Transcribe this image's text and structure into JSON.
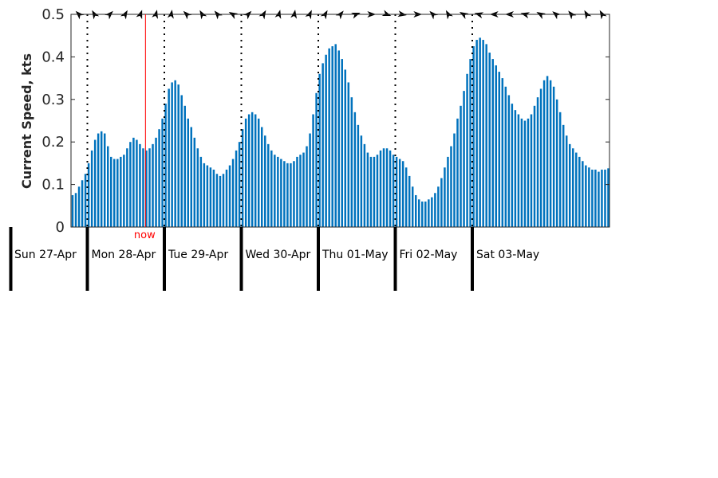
{
  "chart_data": {
    "type": "bar",
    "title": "",
    "xlabel": "",
    "ylabel": "Current Speed, kts",
    "ylim": [
      0,
      0.5
    ],
    "yticks": [
      0,
      0.1,
      0.2,
      0.3,
      0.4,
      0.5
    ],
    "ytick_labels": [
      "0",
      "0.1",
      "0.2",
      "0.3",
      "0.4",
      "0.5"
    ],
    "grid": false,
    "bar_color": "#0072bd",
    "now_color": "#ff0000",
    "now_label": "now",
    "now_position_days": 1.76,
    "day_labels": [
      "Sun 27-Apr",
      "Mon 28-Apr",
      "Tue 29-Apr",
      "Wed 30-Apr",
      "Thu 01-May",
      "Fri 02-May",
      "Sat 03-May"
    ],
    "days_shown": 7,
    "hours_per_bar": 1,
    "values": [
      0.075,
      0.08,
      0.095,
      0.11,
      0.125,
      0.15,
      0.18,
      0.205,
      0.22,
      0.225,
      0.22,
      0.19,
      0.165,
      0.16,
      0.16,
      0.165,
      0.17,
      0.185,
      0.2,
      0.21,
      0.205,
      0.195,
      0.185,
      0.18,
      0.185,
      0.195,
      0.21,
      0.23,
      0.255,
      0.29,
      0.325,
      0.34,
      0.345,
      0.335,
      0.31,
      0.285,
      0.255,
      0.235,
      0.21,
      0.185,
      0.165,
      0.15,
      0.145,
      0.14,
      0.135,
      0.125,
      0.12,
      0.125,
      0.135,
      0.145,
      0.16,
      0.18,
      0.2,
      0.23,
      0.255,
      0.265,
      0.27,
      0.265,
      0.255,
      0.235,
      0.215,
      0.195,
      0.18,
      0.17,
      0.165,
      0.16,
      0.155,
      0.15,
      0.15,
      0.155,
      0.165,
      0.17,
      0.175,
      0.19,
      0.22,
      0.265,
      0.315,
      0.36,
      0.385,
      0.405,
      0.42,
      0.425,
      0.43,
      0.415,
      0.395,
      0.37,
      0.34,
      0.305,
      0.27,
      0.24,
      0.215,
      0.195,
      0.175,
      0.165,
      0.165,
      0.17,
      0.18,
      0.185,
      0.185,
      0.18,
      0.17,
      0.165,
      0.16,
      0.155,
      0.14,
      0.12,
      0.095,
      0.075,
      0.065,
      0.06,
      0.06,
      0.065,
      0.07,
      0.08,
      0.095,
      0.115,
      0.14,
      0.165,
      0.19,
      0.22,
      0.255,
      0.285,
      0.32,
      0.36,
      0.395,
      0.425,
      0.44,
      0.445,
      0.44,
      0.43,
      0.41,
      0.395,
      0.38,
      0.365,
      0.35,
      0.33,
      0.31,
      0.29,
      0.275,
      0.265,
      0.255,
      0.25,
      0.255,
      0.265,
      0.285,
      0.305,
      0.325,
      0.345,
      0.355,
      0.345,
      0.33,
      0.3,
      0.27,
      0.24,
      0.215,
      0.195,
      0.185,
      0.175,
      0.165,
      0.155,
      0.145,
      0.14,
      0.135,
      0.135,
      0.13,
      0.135,
      0.135,
      0.138
    ],
    "direction_arrows_bearing_deg": [
      315,
      330,
      45,
      30,
      20,
      15,
      10,
      315,
      330,
      320,
      300,
      45,
      30,
      15,
      10,
      25,
      30,
      40,
      70,
      90,
      110,
      100,
      90,
      315,
      330,
      300,
      285,
      270,
      270,
      285,
      300,
      310,
      320,
      330,
      330
    ]
  }
}
